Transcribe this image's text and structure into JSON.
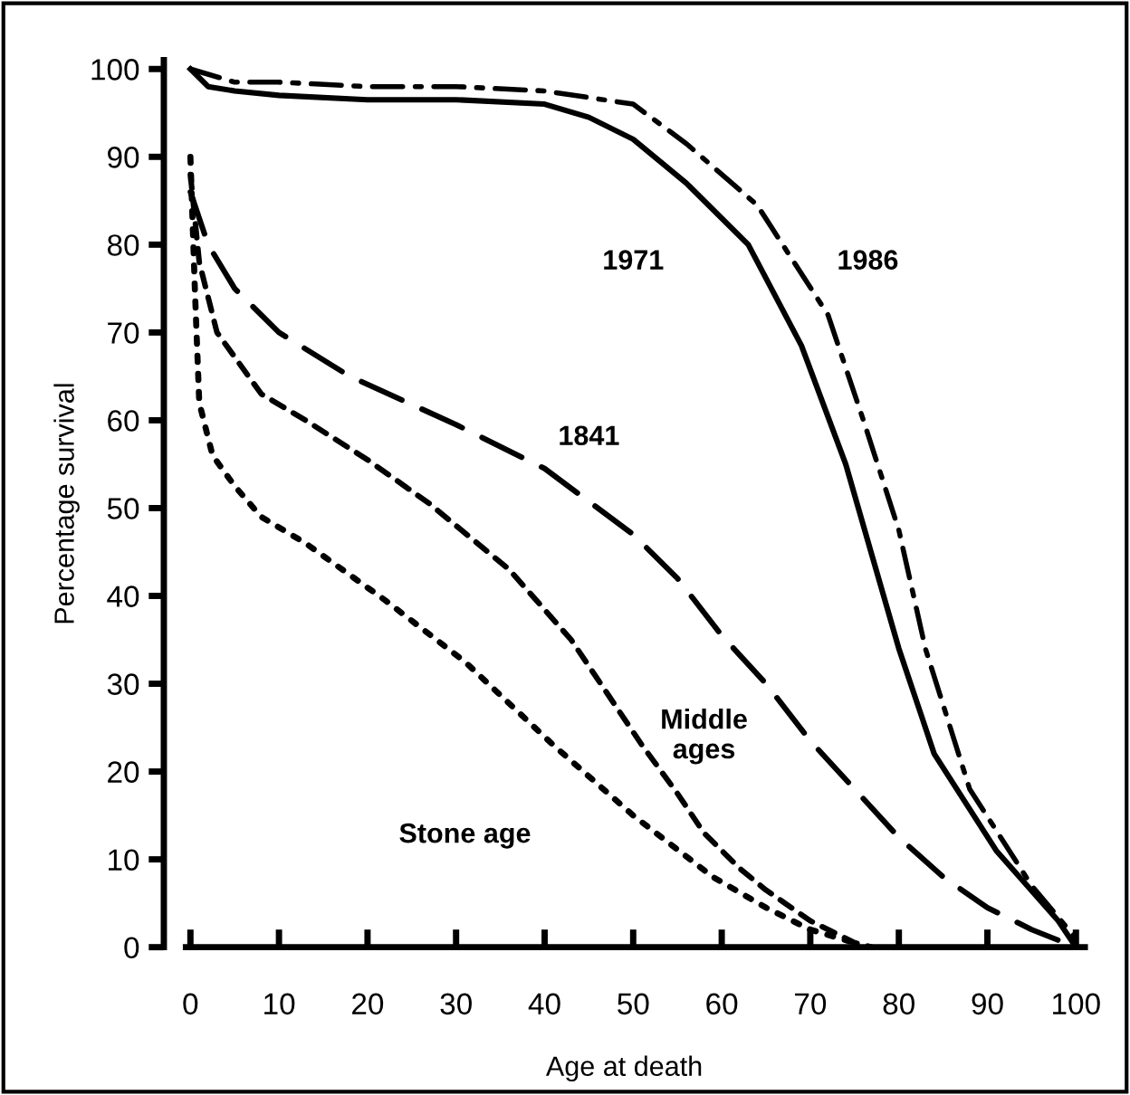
{
  "chart_data": {
    "type": "line",
    "xlabel": "Age at death",
    "ylabel": "Percentage survival",
    "xlim": [
      -3,
      101
    ],
    "ylim": [
      0,
      101
    ],
    "xticks": [
      0,
      10,
      20,
      30,
      40,
      50,
      60,
      70,
      80,
      90,
      100
    ],
    "yticks": [
      0,
      10,
      20,
      30,
      40,
      50,
      60,
      70,
      80,
      90,
      100
    ],
    "grid": false,
    "legend": false,
    "marker": "none",
    "series": [
      {
        "name": "1971",
        "color": "#000000",
        "line_style": "solid",
        "x": [
          0,
          2,
          5,
          10,
          20,
          30,
          40,
          45,
          50,
          56,
          63,
          69,
          74,
          77,
          80,
          84,
          91,
          98,
          100
        ],
        "values": [
          100,
          98,
          97.5,
          97,
          96.5,
          96.5,
          96,
          94.5,
          92,
          87,
          80,
          68.5,
          55,
          44.5,
          34,
          22,
          11,
          3,
          0
        ]
      },
      {
        "name": "1986",
        "color": "#000000",
        "line_style": "dashdot",
        "x": [
          0,
          5,
          10,
          20,
          30,
          40,
          50,
          56,
          64,
          72,
          76,
          80,
          83,
          88,
          95,
          100
        ],
        "values": [
          100,
          98.5,
          98.5,
          98,
          98,
          97.5,
          96,
          91.5,
          84.5,
          72,
          60,
          47.5,
          34,
          18,
          7,
          1
        ]
      },
      {
        "name": "1841",
        "color": "#000000",
        "line_style": "dashed",
        "x": [
          0,
          2,
          5,
          10,
          18,
          30,
          40,
          50,
          55,
          60,
          65,
          70,
          75,
          80,
          85,
          90,
          95,
          100
        ],
        "values": [
          86,
          80,
          75,
          70,
          65,
          59.5,
          54.5,
          47,
          42,
          35.5,
          30,
          23.5,
          18,
          12.5,
          8,
          4.5,
          2,
          0
        ]
      },
      {
        "name": "Middle ages",
        "color": "#000000",
        "line_style": "short dashed",
        "x": [
          0,
          1,
          3,
          8,
          13,
          20,
          27,
          36,
          43,
          47,
          51,
          55,
          58,
          62,
          65,
          70,
          75,
          77
        ],
        "values": [
          88,
          78,
          70,
          63,
          60,
          55.5,
          50.5,
          43,
          35,
          29,
          23,
          17.5,
          13,
          9,
          6.5,
          3,
          0.5,
          0
        ]
      },
      {
        "name": "Stone age",
        "color": "#000000",
        "line_style": "dotted",
        "x": [
          0,
          0.5,
          1,
          2.5,
          5,
          8,
          13,
          22,
          31,
          41,
          50,
          59,
          65,
          70,
          75
        ],
        "values": [
          90,
          75,
          62,
          56,
          52.5,
          49,
          46,
          39.5,
          32.5,
          23,
          15,
          8,
          4.5,
          2,
          0.5
        ]
      }
    ]
  }
}
